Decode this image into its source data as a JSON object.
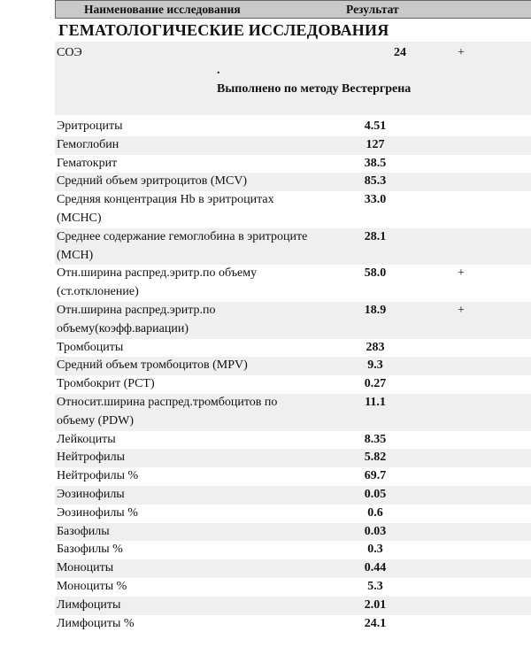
{
  "header": {
    "col_name": "Наименование исследования",
    "col_result": "Результат"
  },
  "section_title": "ГЕМАТОЛОГИЧЕСКИЕ ИССЛЕДОВАНИЯ",
  "esr": {
    "name": "СОЭ",
    "value": "24",
    "flag": "+",
    "dot": ".",
    "method": "Выполнено по методу Вестергрена"
  },
  "rows": [
    {
      "name": "Эритроциты",
      "value": "4.51",
      "flag": ""
    },
    {
      "name": "Гемоглобин",
      "value": "127",
      "flag": ""
    },
    {
      "name": "Гематокрит",
      "value": "38.5",
      "flag": ""
    },
    {
      "name": "Средний объем эритроцитов (MCV)",
      "value": "85.3",
      "flag": ""
    },
    {
      "name": "Средняя концентрация Hb в эритроцитах (MCHC)",
      "value": "33.0",
      "flag": "",
      "two": true
    },
    {
      "name": "Среднее содержание гемоглобина в эритроците (MCH)",
      "value": "28.1",
      "flag": "",
      "two": true
    },
    {
      "name": "Отн.ширина распред.эритр.по объему (ст.отклонение)",
      "value": "58.0",
      "flag": "+",
      "two": true
    },
    {
      "name": "Отн.ширина распред.эритр.по объему(коэфф.вариации)",
      "value": "18.9",
      "flag": "+",
      "two": true
    },
    {
      "name": "Тромбоциты",
      "value": "283",
      "flag": ""
    },
    {
      "name": "Средний объем тромбоцитов (MPV)",
      "value": "9.3",
      "flag": ""
    },
    {
      "name": "Тромбокрит (PCT)",
      "value": "0.27",
      "flag": ""
    },
    {
      "name": "Относит.ширина распред.тромбоцитов по объему (PDW)",
      "value": "11.1",
      "flag": "",
      "two": true
    },
    {
      "name": "Лейкоциты",
      "value": "8.35",
      "flag": ""
    },
    {
      "name": "Нейтрофилы",
      "value": "5.82",
      "flag": ""
    },
    {
      "name": "Нейтрофилы %",
      "value": "69.7",
      "flag": ""
    },
    {
      "name": "Эозинофилы",
      "value": "0.05",
      "flag": ""
    },
    {
      "name": "Эозинофилы %",
      "value": "0.6",
      "flag": ""
    },
    {
      "name": "Базофилы",
      "value": "0.03",
      "flag": ""
    },
    {
      "name": "Базофилы %",
      "value": "0.3",
      "flag": ""
    },
    {
      "name": "Моноциты",
      "value": "0.44",
      "flag": ""
    },
    {
      "name": "Моноциты %",
      "value": "5.3",
      "flag": ""
    },
    {
      "name": "Лимфоциты",
      "value": "2.01",
      "flag": ""
    },
    {
      "name": "Лимфоциты %",
      "value": "24.1",
      "flag": ""
    }
  ]
}
